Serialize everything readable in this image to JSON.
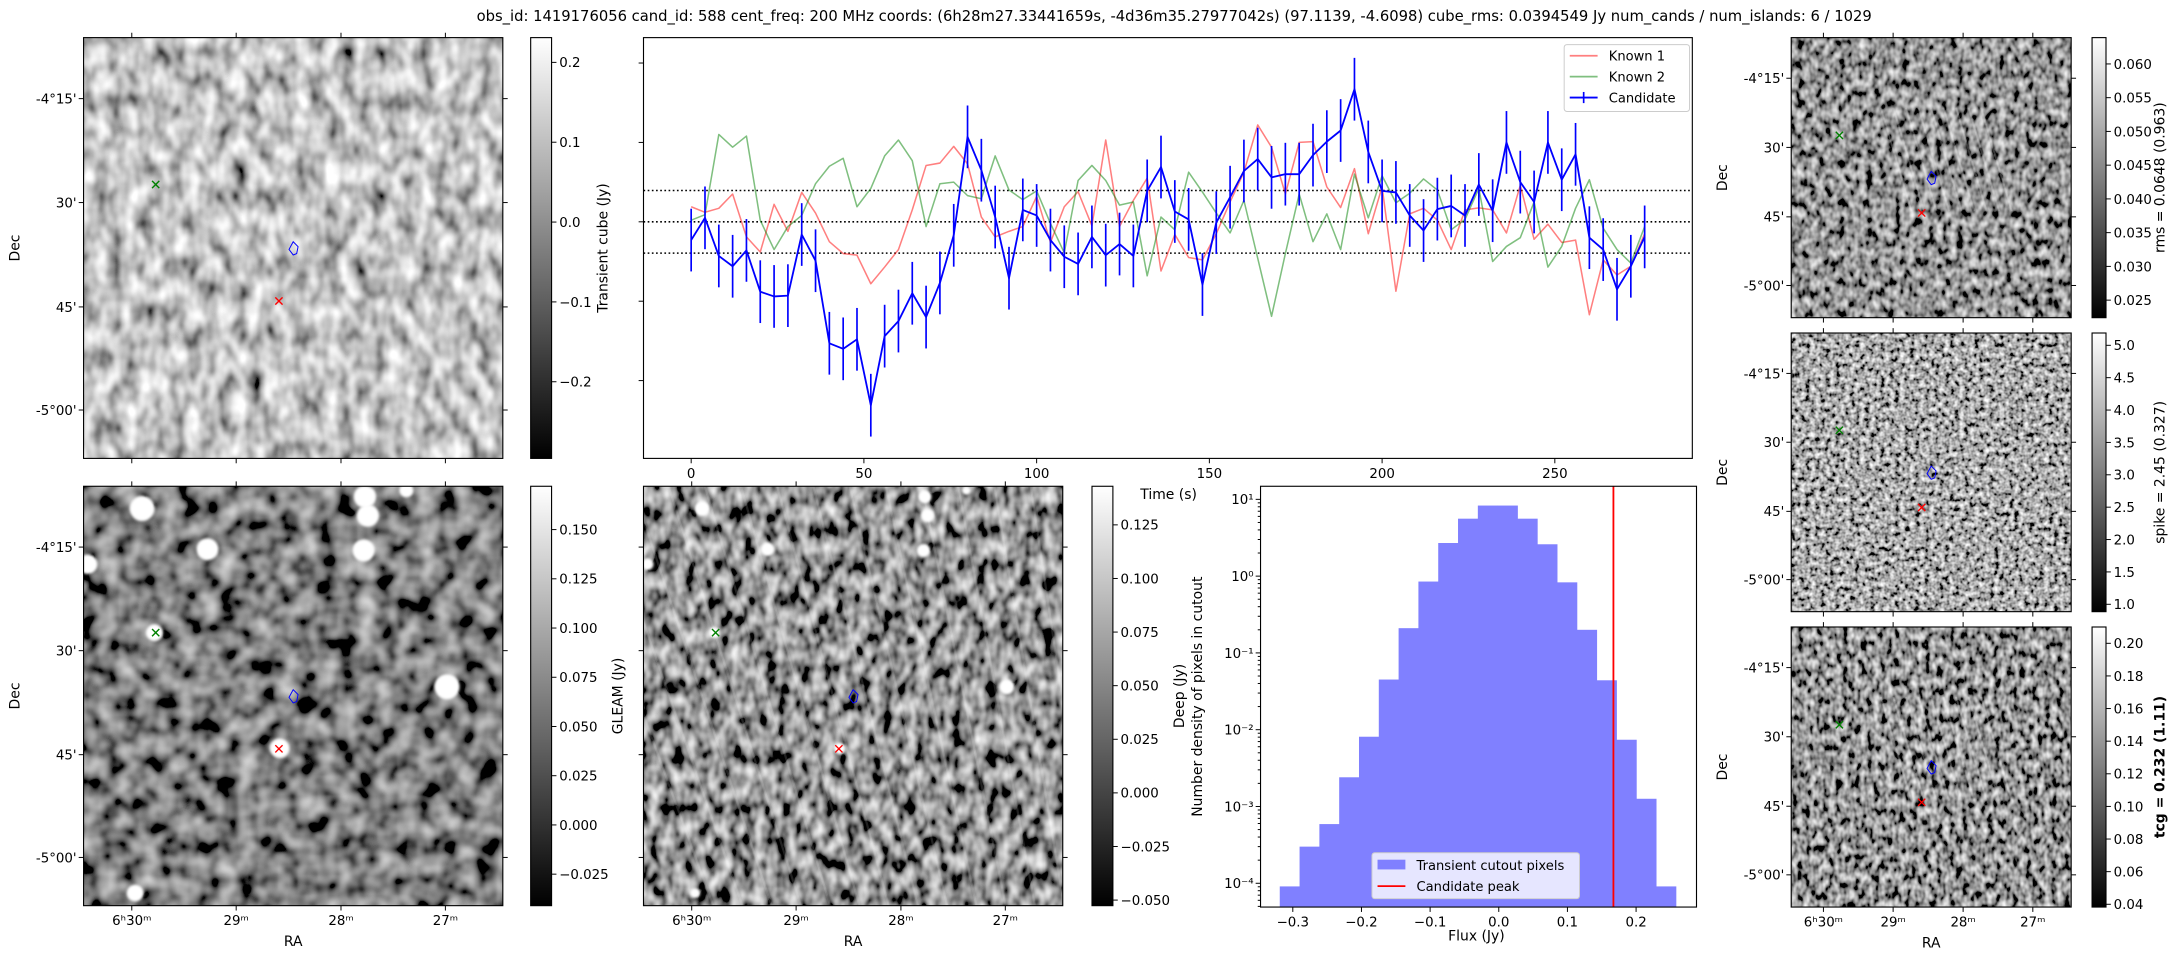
{
  "title": "obs_id: 1419176056 cand_id: 588 cent_freq: 200 MHz coords: (6h28m27.33441659s, -4d36m35.27977042s) (97.1139, -4.6098) cube_rms: 0.0394549 Jy num_cands / num_islands: 6 / 1029",
  "axes": {
    "ra_label": "RA",
    "dec_label": "Dec",
    "ra_ticks": [
      "6ʰ30ᵐ",
      "29ᵐ",
      "28ᵐ",
      "27ᵐ"
    ],
    "dec_ticks": [
      "-4°15'",
      "30'",
      "45'",
      "-5°00'"
    ]
  },
  "markers": {
    "known_1_color": "#ff0000",
    "known_2_color": "#008000",
    "candidate_color": "#0000ff"
  },
  "panels": {
    "transient": {
      "colorbar": {
        "label": "Transient cube (Jy)",
        "range": [
          -0.296,
          0.231
        ],
        "ticks": [
          0.2,
          0.1,
          0.0,
          -0.1,
          -0.2
        ],
        "tick_labels": [
          "0.2",
          "0.1",
          "0.0",
          "−0.1",
          "−0.2"
        ]
      }
    },
    "gleam": {
      "colorbar": {
        "label": "GLEAM (Jy)",
        "range": [
          -0.041,
          0.172
        ],
        "ticks": [
          0.15,
          0.125,
          0.1,
          0.075,
          0.05,
          0.025,
          0.0,
          -0.025
        ],
        "tick_labels": [
          "0.150",
          "0.125",
          "0.100",
          "0.075",
          "0.050",
          "0.025",
          "0.000",
          "−0.025"
        ]
      }
    },
    "deep": {
      "colorbar": {
        "label": "Deep (Jy)",
        "range": [
          -0.0526,
          0.143
        ],
        "ticks": [
          0.125,
          0.1,
          0.075,
          0.05,
          0.025,
          0.0,
          -0.025,
          -0.05
        ],
        "tick_labels": [
          "0.125",
          "0.100",
          "0.075",
          "0.050",
          "0.025",
          "0.000",
          "−0.025",
          "−0.050"
        ]
      }
    },
    "rms": {
      "colorbar": {
        "label": "rms = 0.0648 (0.963)",
        "range": [
          0.0224,
          0.0639
        ],
        "ticks": [
          0.06,
          0.055,
          0.05,
          0.045,
          0.04,
          0.035,
          0.03,
          0.025
        ],
        "tick_labels": [
          "0.060",
          "0.055",
          "0.050",
          "0.045",
          "0.040",
          "0.035",
          "0.030",
          "0.025"
        ]
      }
    },
    "spike": {
      "colorbar": {
        "label": "spike = 2.45 (0.327)",
        "range": [
          0.886,
          5.19
        ],
        "ticks": [
          5.0,
          4.5,
          4.0,
          3.5,
          3.0,
          2.5,
          2.0,
          1.5,
          1.0
        ],
        "tick_labels": [
          "5.0",
          "4.5",
          "4.0",
          "3.5",
          "3.0",
          "2.5",
          "2.0",
          "1.5",
          "1.0"
        ]
      }
    },
    "tcg": {
      "colorbar": {
        "label": "tcg = 0.232 (1.11)",
        "range": [
          0.0383,
          0.21
        ],
        "ticks": [
          0.2,
          0.18,
          0.16,
          0.14,
          0.12,
          0.1,
          0.08,
          0.06,
          0.04
        ],
        "tick_labels": [
          "0.20",
          "0.18",
          "0.16",
          "0.14",
          "0.12",
          "0.10",
          "0.08",
          "0.06",
          "0.04"
        ]
      }
    }
  },
  "chart_data": [
    {
      "type": "line",
      "title": "",
      "xlabel": "Time (s)",
      "xlim": [
        -13.8,
        289.8
      ],
      "ylim": [
        -0.298,
        0.232
      ],
      "x_ticks": [
        0,
        50,
        100,
        150,
        200,
        250
      ],
      "x_tick_labels": [
        "0",
        "50",
        "100",
        "150",
        "200",
        "250"
      ],
      "y_ticks": [
        -0.2,
        -0.1,
        0.0,
        0.1,
        0.2
      ],
      "hlines": [
        -0.0394549,
        0.0,
        0.0394549
      ],
      "legend_position": "top-right",
      "time": [
        0,
        4,
        8,
        12,
        16,
        20,
        24,
        28,
        32,
        36,
        40,
        44,
        48,
        52,
        56,
        60,
        64,
        68,
        72,
        76,
        80,
        84,
        88,
        92,
        96,
        100,
        104,
        108,
        112,
        116,
        120,
        124,
        128,
        132,
        136,
        140,
        144,
        148,
        152,
        156,
        160,
        164,
        168,
        172,
        176,
        180,
        184,
        188,
        192,
        196,
        200,
        204,
        208,
        212,
        216,
        220,
        224,
        228,
        232,
        236,
        240,
        244,
        248,
        252,
        256,
        260,
        264,
        268,
        272,
        276
      ],
      "series": [
        {
          "name": "Known 1",
          "color": "#ff0000",
          "alpha": 0.5,
          "values": [
            0.019,
            0.012,
            0.017,
            0.035,
            -0.019,
            -0.038,
            0.022,
            -0.012,
            0.037,
            0.011,
            -0.025,
            -0.04,
            -0.042,
            -0.078,
            -0.057,
            -0.035,
            0.015,
            0.071,
            0.074,
            0.095,
            0.073,
            0.006,
            -0.019,
            -0.012,
            -0.006,
            0.032,
            -0.026,
            0.019,
            0.038,
            -0.005,
            0.103,
            -0.006,
            0.027,
            0.055,
            -0.062,
            -0.016,
            -0.045,
            -0.048,
            -0.015,
            0.025,
            0.0625,
            0.122,
            0.094,
            0.035,
            0.1,
            0.101,
            0.044,
            0.018,
            0.067,
            -0.015,
            0.044,
            -0.0875,
            0.01,
            0.017,
            0.002,
            -0.035,
            0.015,
            0.0175,
            0.015,
            -0.014,
            0.046,
            -0.022,
            -0.003,
            -0.026,
            -0.023,
            -0.117,
            -0.048,
            -0.067,
            -0.056,
            -0.015
          ]
        },
        {
          "name": "Known 2",
          "color": "#008000",
          "alpha": 0.5,
          "values": [
            0.002,
            0.009,
            0.11,
            0.094,
            0.108,
            0.002,
            -0.035,
            -0.006,
            0.008,
            0.048,
            0.07,
            0.08,
            0.019,
            0.042,
            0.083,
            0.103,
            0.077,
            -0.006,
            0.048,
            0.05,
            0.033,
            0.029,
            0.083,
            0.04,
            0.028,
            0.039,
            -0.002,
            -0.039,
            0.052,
            0.071,
            0.052,
            0.021,
            0.025,
            -0.068,
            0.006,
            -0.01,
            0.0625,
            0.0375,
            0.011,
            -0.014,
            0.027,
            -0.046,
            -0.119,
            -0.04,
            0.035,
            -0.025,
            0.01,
            -0.035,
            0.06,
            0.005,
            0.058,
            0.024,
            0.036,
            0.054,
            0.04,
            -0.01,
            0.003,
            0.042,
            -0.05,
            -0.031,
            -0.02,
            0.025,
            -0.057,
            -0.031,
            0.017,
            0.053,
            -0.008,
            -0.035,
            -0.052,
            -0.006
          ]
        },
        {
          "name": "Candidate",
          "color": "#0000ff",
          "alpha": 1.0,
          "error": 0.0395,
          "values": [
            -0.023,
            0.005,
            -0.043,
            -0.056,
            -0.036,
            -0.088,
            -0.094,
            -0.093,
            -0.016,
            -0.049,
            -0.153,
            -0.16,
            -0.148,
            -0.231,
            -0.144,
            -0.125,
            -0.09,
            -0.12,
            -0.077,
            -0.017,
            0.107,
            0.065,
            0.006,
            -0.071,
            0.015,
            0.008,
            -0.023,
            -0.044,
            -0.053,
            -0.019,
            -0.042,
            -0.028,
            -0.043,
            0.039,
            0.069,
            0.013,
            0.003,
            -0.079,
            -0.001,
            0.031,
            0.064,
            0.079,
            0.056,
            0.06,
            0.06,
            0.084,
            0.101,
            0.115,
            0.167,
            0.088,
            0.039,
            0.037,
            0.008,
            -0.011,
            0.016,
            0.02,
            0.008,
            0.047,
            0.014,
            0.1,
            0.05,
            0.025,
            0.1,
            0.053,
            0.085,
            -0.02,
            -0.035,
            -0.085,
            -0.056,
            -0.019
          ]
        }
      ]
    },
    {
      "type": "bar",
      "title": "",
      "xlabel": "Flux (Jy)",
      "ylabel": "Number density of pixels in cutout",
      "yscale": "log",
      "xlim": [
        -0.347,
        0.288
      ],
      "ylim": [
        4.9e-05,
        14.8
      ],
      "bin_start": -0.319,
      "bin_width": 0.02885,
      "values": [
        9.1e-05,
        0.0003,
        0.00059,
        0.0024,
        0.0081,
        0.045,
        0.21,
        0.85,
        2.7,
        5.6,
        8.3,
        8.3,
        5.6,
        2.6,
        0.83,
        0.2,
        0.044,
        0.0074,
        0.00126,
        9.1e-05
      ],
      "x_ticks": [
        -0.3,
        -0.2,
        -0.1,
        0.0,
        0.1,
        0.2
      ],
      "x_tick_labels": [
        "−0.3",
        "−0.2",
        "−0.1",
        "0.0",
        "0.1",
        "0.2"
      ],
      "y_ticks": [
        0.0001,
        0.001,
        0.01,
        0.1,
        1,
        10
      ],
      "y_tick_labels": [
        "10⁻⁴",
        "10⁻³",
        "10⁻²",
        "10⁻¹",
        "10⁰",
        "10¹"
      ],
      "bar_color": "#8080ff",
      "vline": {
        "x": 0.167,
        "color": "#ff0000"
      },
      "legend": [
        "Transient cutout pixels",
        "Candidate peak"
      ],
      "legend_position": "lower-center"
    }
  ]
}
